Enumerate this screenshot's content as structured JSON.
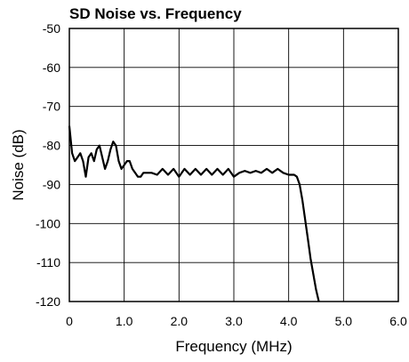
{
  "chart_data": {
    "type": "line",
    "title": "SD Noise vs. Frequency",
    "xlabel": "Frequency (MHz)",
    "ylabel": "Noise (dB)",
    "xlim": [
      0,
      6
    ],
    "ylim": [
      -120,
      -50
    ],
    "x_ticks": [
      "0",
      "1.0",
      "2.0",
      "3.0",
      "4.0",
      "5.0",
      "6.0"
    ],
    "y_ticks": [
      "-50",
      "-60",
      "-70",
      "-80",
      "-90",
      "-100",
      "-110",
      "-120"
    ],
    "grid": true,
    "line_color": "#000000",
    "series": [
      {
        "x": [
          0.0,
          0.05,
          0.1,
          0.15,
          0.2,
          0.25,
          0.3,
          0.35,
          0.4,
          0.45,
          0.5,
          0.55,
          0.6,
          0.65,
          0.7,
          0.75,
          0.8,
          0.85,
          0.9,
          0.95,
          1.0,
          1.05,
          1.1,
          1.15,
          1.2,
          1.25,
          1.3,
          1.35,
          1.4,
          1.45,
          1.5,
          1.6,
          1.7,
          1.8,
          1.9,
          2.0,
          2.1,
          2.2,
          2.3,
          2.4,
          2.5,
          2.6,
          2.7,
          2.8,
          2.9,
          3.0,
          3.1,
          3.2,
          3.3,
          3.4,
          3.5,
          3.6,
          3.7,
          3.8,
          3.9,
          4.0,
          4.05,
          4.1,
          4.15,
          4.2,
          4.25,
          4.3,
          4.35,
          4.4,
          4.45,
          4.5,
          4.55
        ],
        "y": [
          -75,
          -82,
          -84,
          -83,
          -82,
          -84,
          -88,
          -83,
          -82,
          -84,
          -81,
          -80,
          -83,
          -86,
          -84,
          -81,
          -79,
          -80,
          -84,
          -86,
          -85,
          -84,
          -84,
          -86,
          -87,
          -88,
          -88,
          -87,
          -87,
          -87,
          -87,
          -87.5,
          -86,
          -87.5,
          -86,
          -88,
          -86,
          -87.5,
          -86,
          -87.5,
          -86,
          -87.5,
          -86,
          -87.5,
          -86,
          -88,
          -87,
          -86.5,
          -87,
          -86.5,
          -87,
          -86,
          -87,
          -86,
          -87,
          -87.5,
          -87.5,
          -87.5,
          -88,
          -90,
          -94,
          -99,
          -104,
          -109,
          -113,
          -117,
          -120
        ]
      }
    ]
  }
}
